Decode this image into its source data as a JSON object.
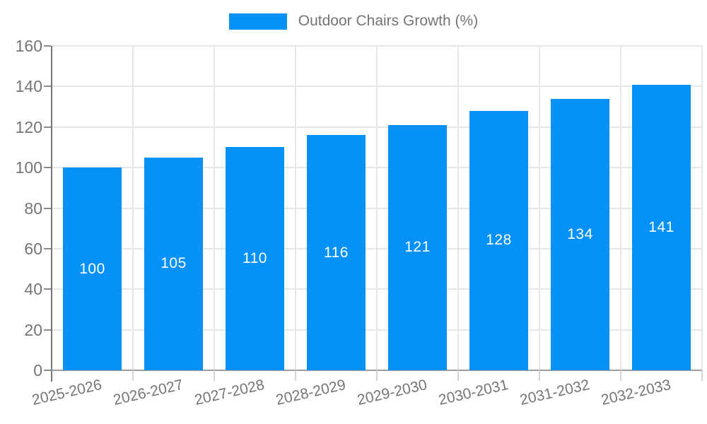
{
  "chart": {
    "legend": {
      "label": "Outdoor Chairs Growth (%)",
      "position": "top"
    },
    "colors": {
      "bar": "#0591f8",
      "bar_label": "#ffffff",
      "grid": "#e6e6e6",
      "axis": "#757575",
      "baseline": "#9e9e9e",
      "tick": "#8a8a8a",
      "minor_tick": "#d4d4d4",
      "text": "#757575",
      "background": "#ffffff"
    }
  },
  "chart_data": {
    "type": "bar",
    "title": "Outdoor Chairs Growth (%)",
    "categories": [
      "2025-2026",
      "2026-2027",
      "2027-2028",
      "2028-2029",
      "2029-2030",
      "2030-2031",
      "2031-2032",
      "2032-2033"
    ],
    "values": [
      100,
      105,
      110,
      116,
      121,
      128,
      134,
      141
    ],
    "bar_labels": [
      "100",
      "105",
      "110",
      "116",
      "121",
      "128",
      "134",
      "141"
    ],
    "xlabel": "",
    "ylabel": "",
    "ylim": [
      0,
      160
    ],
    "yticks": [
      0,
      20,
      40,
      60,
      80,
      100,
      120,
      140,
      160
    ],
    "grid": true,
    "legend_position": "top",
    "x_label_rotation_deg": -13
  }
}
